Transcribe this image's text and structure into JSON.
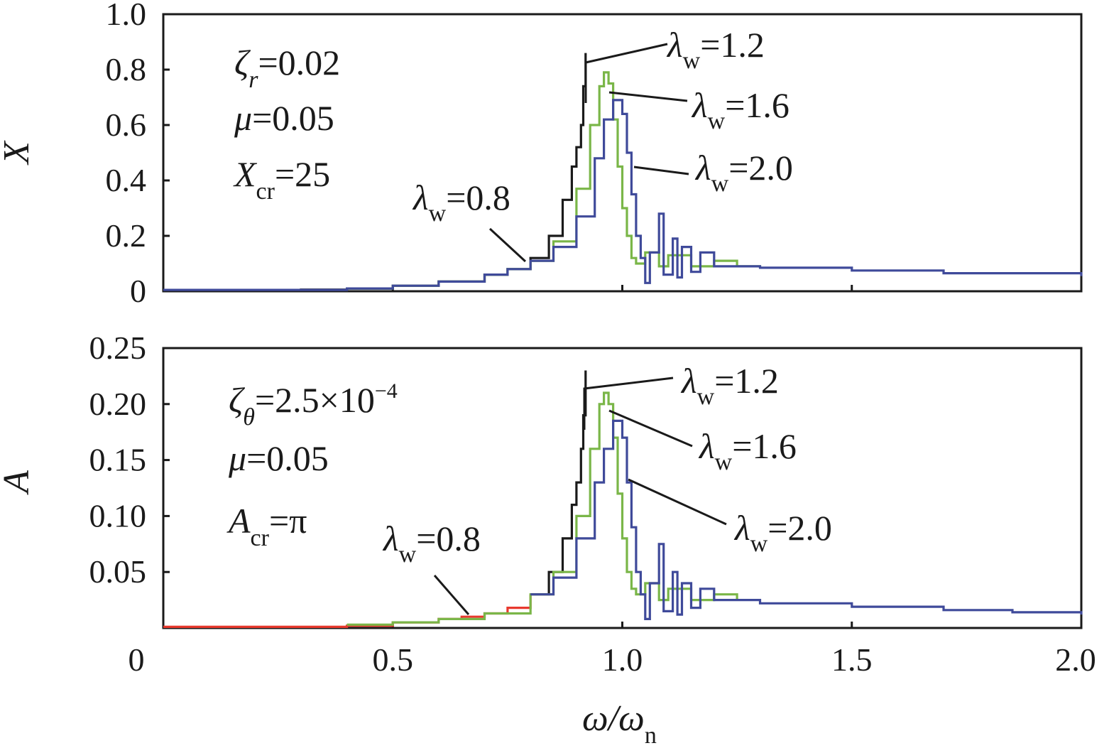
{
  "chart_data": [
    {
      "type": "line",
      "ylabel": "X",
      "xlabel": "",
      "xlim": [
        0,
        2.0
      ],
      "ylim": [
        0,
        1.0
      ],
      "x_ticks": [
        0.5,
        1.0,
        1.5
      ],
      "y_ticks": [
        0,
        0.2,
        0.4,
        0.6,
        0.8,
        1.0
      ],
      "y_tick_labels": [
        "0",
        "0.2",
        "0.4",
        "0.6",
        "0.8",
        "1.0"
      ],
      "params": [
        {
          "sym": "ζ",
          "sub": "r",
          "value": "=0.02"
        },
        {
          "sym": "μ",
          "sub": "",
          "value": "=0.05"
        },
        {
          "sym": "X",
          "sub": "cr",
          "value": "=25"
        }
      ],
      "annotations": [
        {
          "sym": "λ",
          "sub": "w",
          "value": "=1.2"
        },
        {
          "sym": "λ",
          "sub": "w",
          "value": "=1.6"
        },
        {
          "sym": "λ",
          "sub": "w",
          "value": "=2.0"
        },
        {
          "sym": "λ",
          "sub": "w",
          "value": "=0.8"
        }
      ],
      "series": [
        {
          "color": "#1a1a1a",
          "x": [
            0,
            0.3,
            0.4,
            0.5,
            0.6,
            0.7,
            0.75,
            0.8,
            0.84,
            0.87,
            0.89,
            0.9,
            0.91,
            0.915,
            0.92
          ],
          "y": [
            0.005,
            0.006,
            0.01,
            0.02,
            0.035,
            0.06,
            0.08,
            0.12,
            0.2,
            0.33,
            0.45,
            0.52,
            0.6,
            0.74,
            0.86
          ]
        },
        {
          "color": "#7ab648",
          "x": [
            0.4,
            0.5,
            0.6,
            0.7,
            0.75,
            0.8,
            0.85,
            0.9,
            0.93,
            0.95,
            0.96,
            0.97,
            0.98,
            0.99,
            1.0,
            1.01,
            1.02,
            1.03,
            1.05,
            1.08,
            1.1,
            1.15,
            1.2,
            1.25,
            1.3
          ],
          "y": [
            0.01,
            0.02,
            0.035,
            0.06,
            0.08,
            0.11,
            0.18,
            0.37,
            0.6,
            0.74,
            0.79,
            0.75,
            0.62,
            0.45,
            0.3,
            0.2,
            0.12,
            0.1,
            0.14,
            0.09,
            0.13,
            0.09,
            0.11,
            0.09,
            0.085
          ]
        },
        {
          "color": "#3f4a9a",
          "x": [
            0,
            0.4,
            0.5,
            0.6,
            0.7,
            0.75,
            0.8,
            0.85,
            0.9,
            0.94,
            0.96,
            0.98,
            1.0,
            1.01,
            1.02,
            1.03,
            1.04,
            1.05,
            1.06,
            1.08,
            1.09,
            1.11,
            1.12,
            1.13,
            1.15,
            1.17,
            1.2,
            1.3,
            1.5,
            1.7,
            2.0
          ],
          "y": [
            0.005,
            0.01,
            0.02,
            0.035,
            0.06,
            0.08,
            0.11,
            0.16,
            0.27,
            0.48,
            0.62,
            0.69,
            0.64,
            0.5,
            0.35,
            0.2,
            0.12,
            0.03,
            0.14,
            0.28,
            0.06,
            0.19,
            0.05,
            0.16,
            0.07,
            0.14,
            0.09,
            0.085,
            0.075,
            0.065,
            0.055
          ]
        }
      ]
    },
    {
      "type": "line",
      "ylabel": "A",
      "xlabel": "ω/ω",
      "xlabel_sub": "n",
      "xlim": [
        0,
        2.0
      ],
      "ylim": [
        0,
        0.25
      ],
      "x_ticks": [
        0,
        0.5,
        1.0,
        1.5,
        2.0
      ],
      "x_tick_labels": [
        "0",
        "0.5",
        "1.0",
        "1.5",
        "2.0"
      ],
      "y_ticks": [
        0.05,
        0.1,
        0.15,
        0.2,
        0.25
      ],
      "y_tick_labels": [
        "0.05",
        "0.10",
        "0.15",
        "0.20",
        "0.25"
      ],
      "params": [
        {
          "sym": "ζ",
          "sub": "θ",
          "value": "=2.5×10",
          "sup": "−4"
        },
        {
          "sym": "μ",
          "sub": "",
          "value": "=0.05"
        },
        {
          "sym": "A",
          "sub": "cr",
          "value": "=π"
        }
      ],
      "annotations": [
        {
          "sym": "λ",
          "sub": "w",
          "value": "=1.2"
        },
        {
          "sym": "λ",
          "sub": "w",
          "value": "=1.6"
        },
        {
          "sym": "λ",
          "sub": "w",
          "value": "=2.0"
        },
        {
          "sym": "λ",
          "sub": "w",
          "value": "=0.8"
        }
      ],
      "series": [
        {
          "color": "#e8392e",
          "x": [
            0,
            0.4,
            0.5,
            0.6,
            0.65,
            0.7,
            0.75,
            0.8
          ],
          "y": [
            0.001,
            0.002,
            0.005,
            0.008,
            0.01,
            0.013,
            0.018,
            0.03
          ]
        },
        {
          "color": "#1a1a1a",
          "x": [
            0.8,
            0.84,
            0.87,
            0.89,
            0.9,
            0.91,
            0.915,
            0.92
          ],
          "y": [
            0.03,
            0.05,
            0.08,
            0.11,
            0.13,
            0.16,
            0.19,
            0.23
          ]
        },
        {
          "color": "#7ab648",
          "x": [
            0.4,
            0.5,
            0.6,
            0.7,
            0.8,
            0.85,
            0.9,
            0.93,
            0.95,
            0.96,
            0.97,
            0.98,
            0.99,
            1.0,
            1.01,
            1.02,
            1.03,
            1.05,
            1.08,
            1.1,
            1.15,
            1.2,
            1.25
          ],
          "y": [
            0.003,
            0.005,
            0.008,
            0.013,
            0.03,
            0.05,
            0.1,
            0.16,
            0.2,
            0.21,
            0.2,
            0.17,
            0.12,
            0.08,
            0.05,
            0.035,
            0.03,
            0.04,
            0.025,
            0.035,
            0.025,
            0.03,
            0.025
          ]
        },
        {
          "color": "#3f4a9a",
          "x": [
            0.8,
            0.85,
            0.9,
            0.94,
            0.96,
            0.98,
            1.0,
            1.01,
            1.02,
            1.03,
            1.04,
            1.05,
            1.06,
            1.08,
            1.09,
            1.11,
            1.12,
            1.13,
            1.15,
            1.17,
            1.2,
            1.3,
            1.5,
            1.7,
            1.85,
            2.0
          ],
          "y": [
            0.03,
            0.045,
            0.08,
            0.13,
            0.16,
            0.185,
            0.17,
            0.13,
            0.09,
            0.05,
            0.03,
            0.008,
            0.04,
            0.075,
            0.015,
            0.05,
            0.012,
            0.04,
            0.018,
            0.035,
            0.025,
            0.022,
            0.019,
            0.016,
            0.014,
            0.012
          ]
        }
      ]
    }
  ]
}
